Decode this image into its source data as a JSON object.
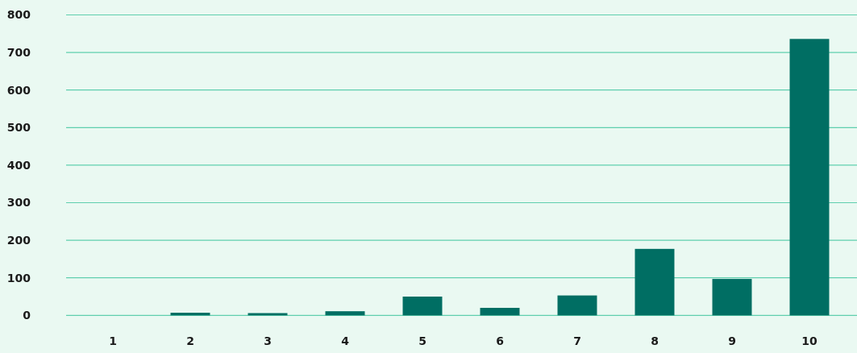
{
  "chart_data": {
    "type": "bar",
    "categories": [
      "1",
      "2",
      "3",
      "4",
      "5",
      "6",
      "7",
      "8",
      "9",
      "10"
    ],
    "values": [
      0,
      7,
      6,
      11,
      50,
      20,
      53,
      177,
      97,
      736
    ],
    "color": "#006e63",
    "ylim": [
      0,
      800
    ],
    "yticks": [
      0,
      100,
      200,
      300,
      400,
      500,
      600,
      700,
      800
    ],
    "grid": "y"
  }
}
